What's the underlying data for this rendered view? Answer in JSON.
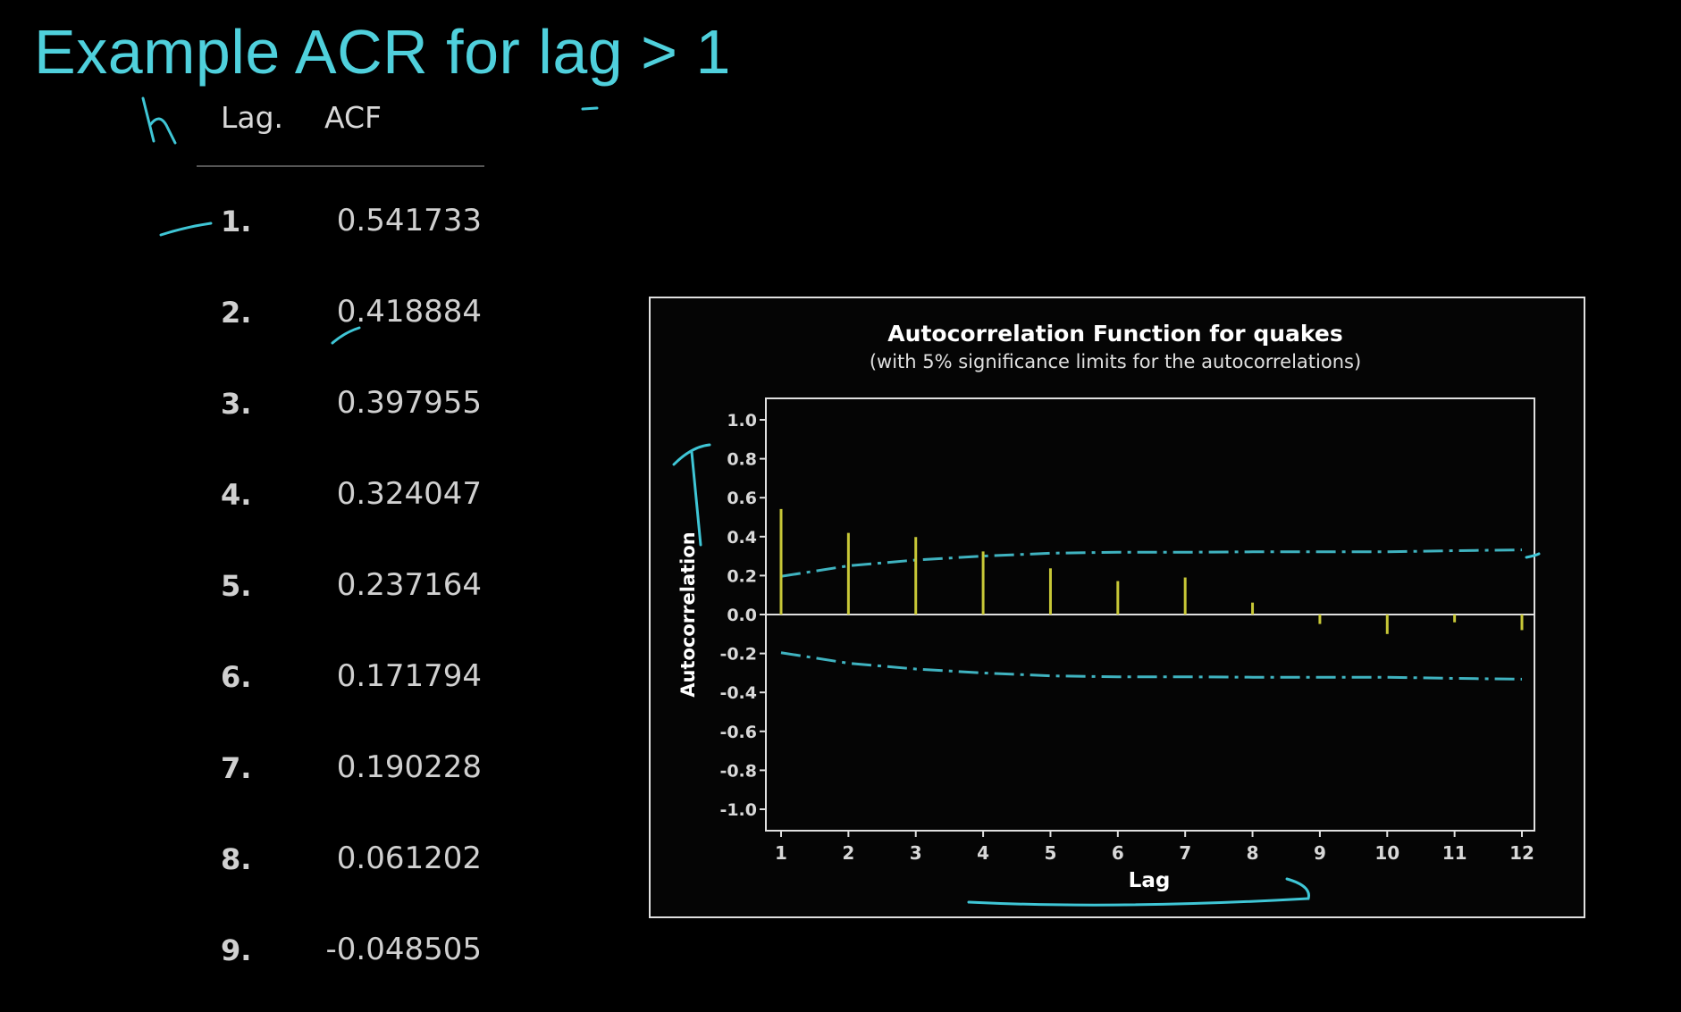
{
  "slide": {
    "title": "Example ACR for lag > 1"
  },
  "table": {
    "headers": {
      "lag": "Lag.",
      "acf": "ACF"
    },
    "rows": [
      {
        "lag": "1.",
        "acf": "0.541733"
      },
      {
        "lag": "2.",
        "acf": "0.418884"
      },
      {
        "lag": "3.",
        "acf": "0.397955"
      },
      {
        "lag": "4.",
        "acf": "0.324047"
      },
      {
        "lag": "5.",
        "acf": "0.237164"
      },
      {
        "lag": "6.",
        "acf": "0.171794"
      },
      {
        "lag": "7.",
        "acf": "0.190228"
      },
      {
        "lag": "8.",
        "acf": "0.061202"
      },
      {
        "lag": "9.",
        "acf": "-0.048505"
      }
    ]
  },
  "chart_data": {
    "type": "bar",
    "title": "Autocorrelation Function for quakes",
    "subtitle": "(with 5% significance limits for the autocorrelations)",
    "xlabel": "Lag",
    "ylabel": "Autocorrelation",
    "x": [
      1,
      2,
      3,
      4,
      5,
      6,
      7,
      8,
      9,
      10,
      11,
      12
    ],
    "values": [
      0.541733,
      0.418884,
      0.397955,
      0.324047,
      0.237164,
      0.171794,
      0.190228,
      0.061202,
      -0.048505,
      -0.1,
      -0.04,
      -0.08
    ],
    "ylim": [
      -1.0,
      1.0
    ],
    "yticks": [
      "1.0",
      "0.8",
      "0.6",
      "0.4",
      "0.2",
      "0.0",
      "-0.2",
      "-0.4",
      "-0.6",
      "-0.8",
      "-1.0"
    ],
    "xticks": [
      "1",
      "2",
      "3",
      "4",
      "5",
      "6",
      "7",
      "8",
      "9",
      "10",
      "11",
      "12"
    ],
    "significance_limits": [
      0.196,
      0.25,
      0.28,
      0.3,
      0.315,
      0.32,
      0.32,
      0.322,
      0.322,
      0.322,
      0.328,
      0.332
    ],
    "colors": {
      "bars": "#c8c837",
      "limits": "#3fb3c0",
      "axes": "#e0e0e0",
      "text": "#ffffff"
    },
    "grid": false
  }
}
